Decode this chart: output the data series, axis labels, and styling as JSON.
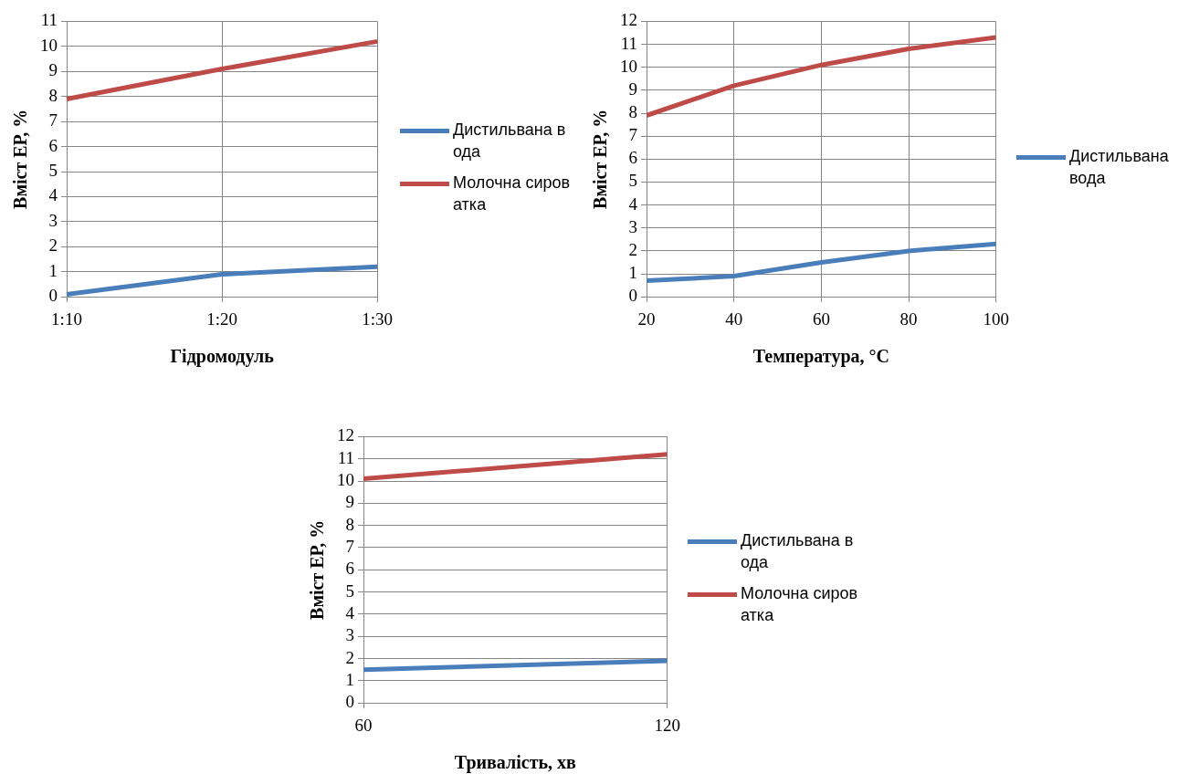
{
  "chart_data": [
    {
      "type": "line",
      "categories": [
        "1:10",
        "1:20",
        "1:30"
      ],
      "xlabel": "Гідромодуль",
      "ylabel": "Вміст ЕР, %",
      "ylim": [
        0,
        11
      ],
      "yticks": [
        0,
        1,
        2,
        3,
        4,
        5,
        6,
        7,
        8,
        9,
        10,
        11
      ],
      "grid": true,
      "legend": "right",
      "marker": "none",
      "series": [
        {
          "name": "Дистильвана вода",
          "color": "#4a7ebb",
          "values": [
            0.1,
            0.9,
            1.2
          ]
        },
        {
          "name": "Молочна сироватка",
          "color": "#be4b48",
          "values": [
            7.9,
            9.1,
            10.2
          ]
        }
      ]
    },
    {
      "type": "line",
      "x": [
        20,
        40,
        60,
        80,
        100
      ],
      "xlabel": "Температура, °С",
      "ylabel": "Вміст ЕР, %",
      "xlim": [
        20,
        100
      ],
      "xticks": [
        20,
        40,
        60,
        80,
        100
      ],
      "ylim": [
        0,
        12
      ],
      "yticks": [
        0,
        1,
        2,
        3,
        4,
        5,
        6,
        7,
        8,
        9,
        10,
        11,
        12
      ],
      "grid": true,
      "legend": "right",
      "marker": "none",
      "series": [
        {
          "name": "Дистильвана вода",
          "color": "#4a7ebb",
          "values": [
            0.7,
            0.9,
            1.5,
            2.0,
            2.3
          ]
        },
        {
          "color": "#be4b48",
          "values": [
            7.9,
            9.2,
            10.1,
            10.8,
            11.3
          ]
        }
      ]
    },
    {
      "type": "line",
      "x": [
        60,
        120
      ],
      "xlabel": "Тривалість, хв",
      "ylabel": "Вміст ЕР, %",
      "xlim": [
        60,
        120
      ],
      "xticks": [
        60,
        120
      ],
      "ylim": [
        0,
        12
      ],
      "yticks": [
        0,
        1,
        2,
        3,
        4,
        5,
        6,
        7,
        8,
        9,
        10,
        11,
        12
      ],
      "grid": true,
      "legend": "right",
      "marker": "none",
      "series": [
        {
          "name": "Дистильвана вода",
          "color": "#4a7ebb",
          "values": [
            1.5,
            1.9
          ]
        },
        {
          "name": "Молочна сироватка",
          "color": "#be4b48",
          "values": [
            10.1,
            11.2
          ]
        }
      ]
    }
  ]
}
